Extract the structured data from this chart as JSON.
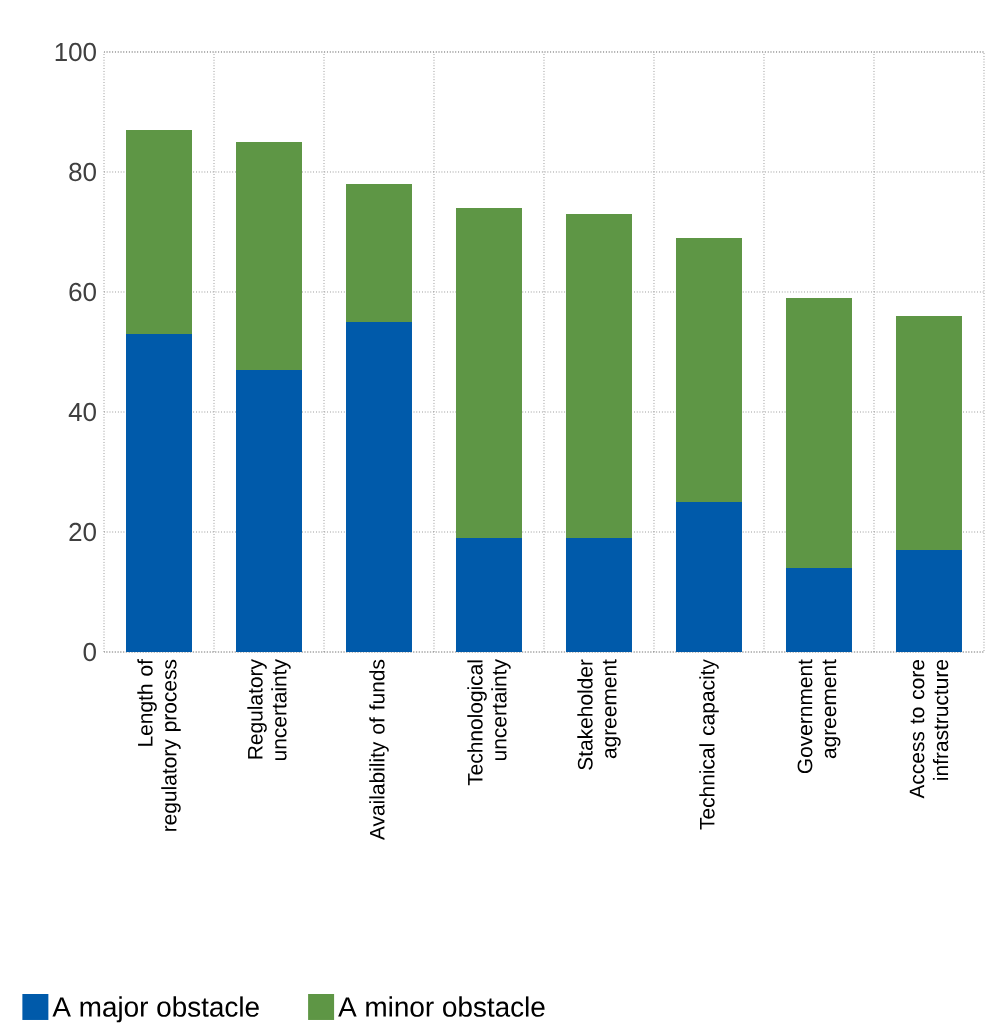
{
  "chart_data": {
    "type": "bar",
    "stacked": true,
    "categories": [
      "Length of regulatory process",
      "Regulatory uncertainty",
      "Availability of funds",
      "Technological uncertainty",
      "Stakeholder agreement",
      "Technical capacity",
      "Government agreement",
      "Access to core infrastructure"
    ],
    "series": [
      {
        "name": "A major obstacle",
        "color": "#005aaa",
        "values": [
          53,
          47,
          55,
          19,
          19,
          25,
          14,
          17
        ]
      },
      {
        "name": "A minor obstacle",
        "color": "#5e9645",
        "values": [
          34,
          38,
          23,
          55,
          54,
          44,
          45,
          39
        ]
      }
    ],
    "ylim": [
      0,
      100
    ],
    "yticks": [
      0,
      20,
      40,
      60,
      80,
      100
    ],
    "grid": true,
    "legend": "bottom"
  }
}
